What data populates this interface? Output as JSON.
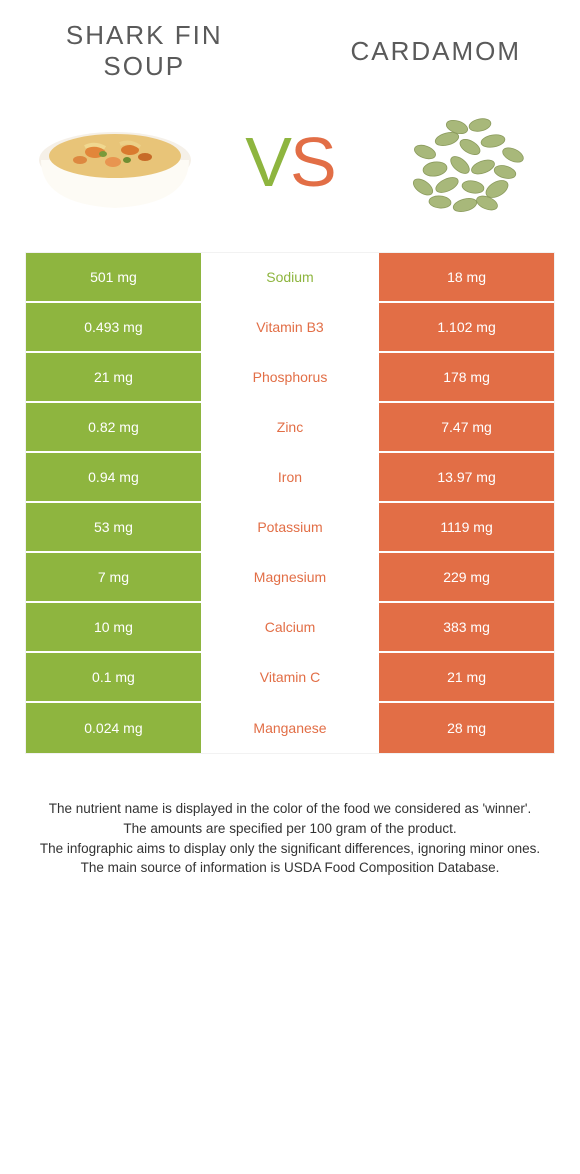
{
  "colors": {
    "green": "#8eb53f",
    "orange": "#e26e46",
    "text_green": "#8eb53f",
    "text_orange": "#e26e46"
  },
  "header": {
    "left_title": "Shark Fin Soup",
    "right_title": "Cardamom",
    "vs_v": "V",
    "vs_s": "S"
  },
  "rows": [
    {
      "left": "501 mg",
      "name": "Sodium",
      "right": "18 mg",
      "winner": "left"
    },
    {
      "left": "0.493 mg",
      "name": "Vitamin B3",
      "right": "1.102 mg",
      "winner": "right"
    },
    {
      "left": "21 mg",
      "name": "Phosphorus",
      "right": "178 mg",
      "winner": "right"
    },
    {
      "left": "0.82 mg",
      "name": "Zinc",
      "right": "7.47 mg",
      "winner": "right"
    },
    {
      "left": "0.94 mg",
      "name": "Iron",
      "right": "13.97 mg",
      "winner": "right"
    },
    {
      "left": "53 mg",
      "name": "Potassium",
      "right": "1119 mg",
      "winner": "right"
    },
    {
      "left": "7 mg",
      "name": "Magnesium",
      "right": "229 mg",
      "winner": "right"
    },
    {
      "left": "10 mg",
      "name": "Calcium",
      "right": "383 mg",
      "winner": "right"
    },
    {
      "left": "0.1 mg",
      "name": "Vitamin C",
      "right": "21 mg",
      "winner": "right"
    },
    {
      "left": "0.024 mg",
      "name": "Manganese",
      "right": "28 mg",
      "winner": "right"
    }
  ],
  "footnotes": [
    "The nutrient name is displayed in the color of the food we considered as 'winner'.",
    "The amounts are specified per 100 gram of the product.",
    "The infographic aims to display only the significant differences, ignoring minor ones.",
    "The main source of information is USDA Food Composition Database."
  ]
}
